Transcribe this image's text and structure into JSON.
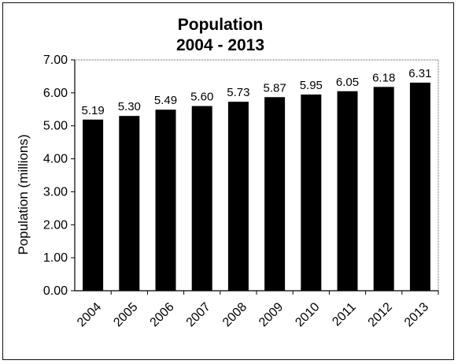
{
  "chart_data": {
    "type": "bar",
    "title": "Population",
    "subtitle": "2004 - 2013",
    "xlabel": "",
    "ylabel": "Population (millions)",
    "categories": [
      "2004",
      "2005",
      "2006",
      "2007",
      "2008",
      "2009",
      "2010",
      "2011",
      "2012",
      "2013"
    ],
    "values": [
      5.19,
      5.3,
      5.49,
      5.6,
      5.73,
      5.87,
      5.95,
      6.05,
      6.18,
      6.31
    ],
    "data_labels": [
      "5.19",
      "5.30",
      "5.49",
      "5.60",
      "5.73",
      "5.87",
      "5.95",
      "6.05",
      "6.18",
      "6.31"
    ],
    "ylim": [
      0,
      7
    ],
    "yticks": [
      "0.00",
      "1.00",
      "2.00",
      "3.00",
      "4.00",
      "5.00",
      "6.00",
      "7.00"
    ],
    "grid": false,
    "legend": "none",
    "bar_color": "#000000"
  }
}
